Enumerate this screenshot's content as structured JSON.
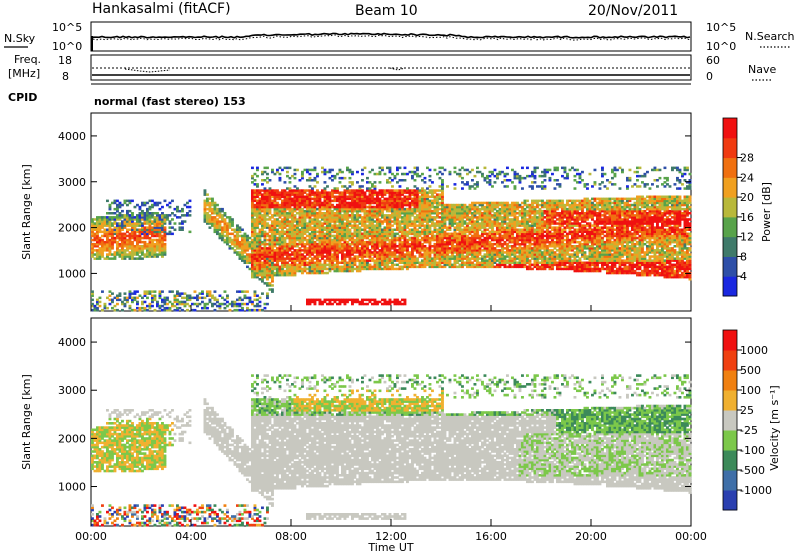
{
  "header": {
    "station": "Hankasalmi (fitACF)",
    "beam": "Beam 10",
    "date": "20/Nov/2011"
  },
  "top_panels": {
    "nsky": {
      "label": "N.Sky",
      "right_label": "N.Search",
      "tick_top": "10^5",
      "tick_bottom": "10^0",
      "right_tick_top": "10^5",
      "right_tick_bottom": "10^0"
    },
    "freq": {
      "label_line1": "Freq.",
      "label_line2": "[MHz]",
      "right_label": "Nave",
      "ticks": [
        "18",
        "8"
      ],
      "right_ticks": [
        "60",
        "0"
      ]
    },
    "cpid": {
      "label": "CPID",
      "text": "normal (fast stereo) 153"
    }
  },
  "chart_data": [
    {
      "type": "heatmap",
      "name": "power",
      "ylabel": "Slant Range [km]",
      "xlabel": "",
      "xlim": [
        0,
        24
      ],
      "ylim": [
        180,
        4500
      ],
      "yticks": [
        "1000",
        "2000",
        "3000",
        "4000"
      ],
      "colorbar": {
        "label": "Power [dB]",
        "ticks": [
          "4",
          "8",
          "12",
          "16",
          "20",
          "24",
          "28"
        ],
        "colors": [
          "#1a28e0",
          "#2e4fa8",
          "#3f7a6a",
          "#58a34a",
          "#b8b83a",
          "#f0a020",
          "#f07010",
          "#f03a10",
          "#f01010"
        ]
      }
    },
    {
      "type": "heatmap",
      "name": "velocity",
      "ylabel": "Slant Range [km]",
      "xlabel": "Time UT",
      "xlim": [
        0,
        24
      ],
      "ylim": [
        180,
        4500
      ],
      "yticks": [
        "1000",
        "2000",
        "3000",
        "4000"
      ],
      "xticks": [
        "00:00",
        "04:00",
        "08:00",
        "12:00",
        "16:00",
        "20:00",
        "00:00"
      ],
      "colorbar": {
        "label": "Velocity [m s⁻¹]",
        "ticks": [
          "1000",
          "500",
          "100",
          "25",
          "-25",
          "-100",
          "-500",
          "-1000"
        ],
        "colors": [
          "#2a3fb0",
          "#3f6fa8",
          "#3c8a5a",
          "#7cc84a",
          "#c8c8c0",
          "#f0b030",
          "#f08010",
          "#f04010",
          "#f01010"
        ]
      }
    }
  ]
}
